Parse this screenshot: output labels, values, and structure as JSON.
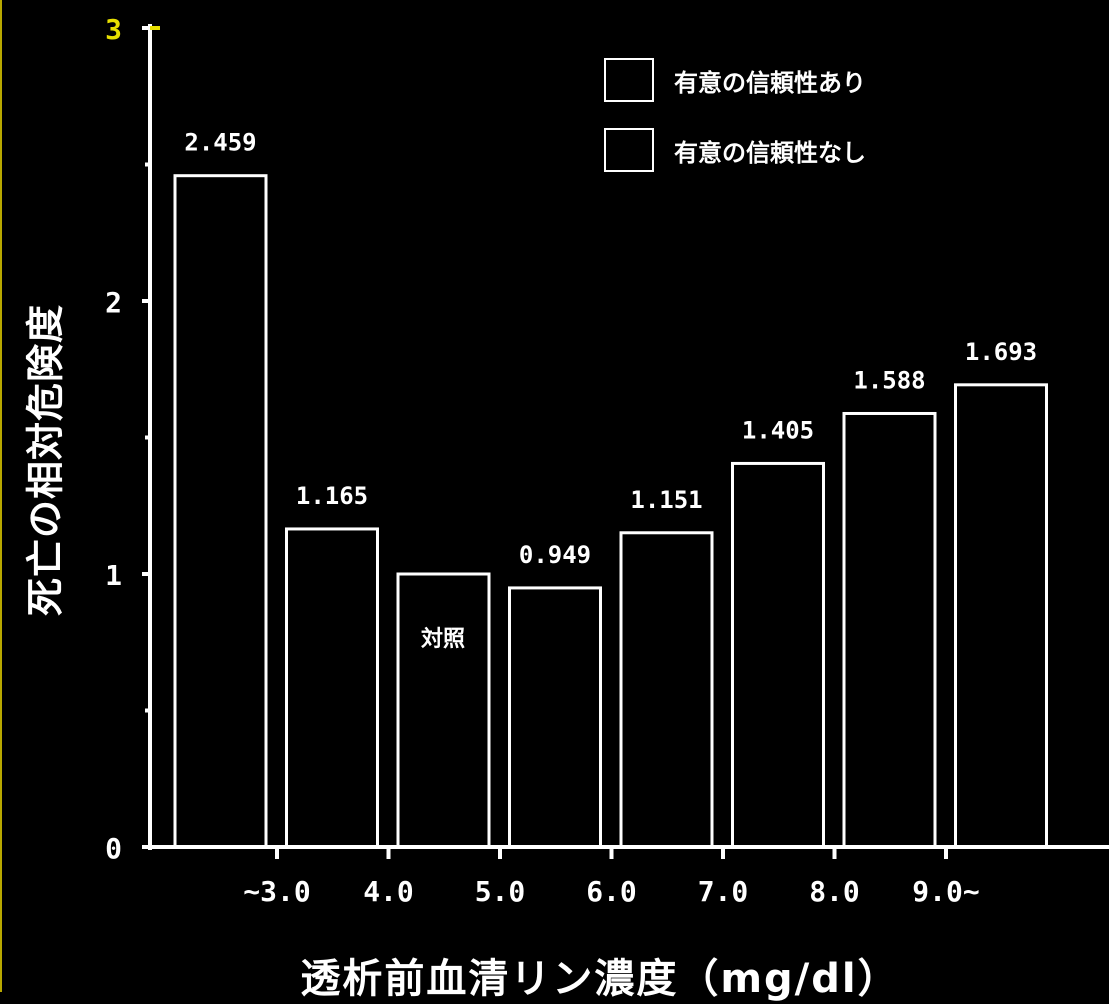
{
  "chart_data": {
    "type": "bar",
    "xlabel": "透析前血清リン濃度（mg/dl）",
    "ylabel": "死亡の相対危険度",
    "ylim": [
      0,
      3
    ],
    "yticks": [
      "0",
      "1",
      "2",
      "3"
    ],
    "xticks": [
      "~3.0",
      "4.0",
      "5.0",
      "6.0",
      "7.0",
      "8.0",
      "9.0~"
    ],
    "values": [
      2.459,
      1.165,
      1.0,
      0.949,
      1.151,
      1.405,
      1.588,
      1.693
    ],
    "value_labels": [
      "2.459",
      "1.165",
      "",
      "0.949",
      "1.151",
      "1.405",
      "1.588",
      "1.693"
    ],
    "reference_label": "対照",
    "reference_index": 2,
    "legend_position": "top-right",
    "legend": [
      "有意の信頼性あり",
      "有意の信頼性なし"
    ],
    "grid": false,
    "colors": {
      "background": "#000000",
      "foreground": "#ffffff",
      "axis_top": "#e8e000"
    }
  }
}
